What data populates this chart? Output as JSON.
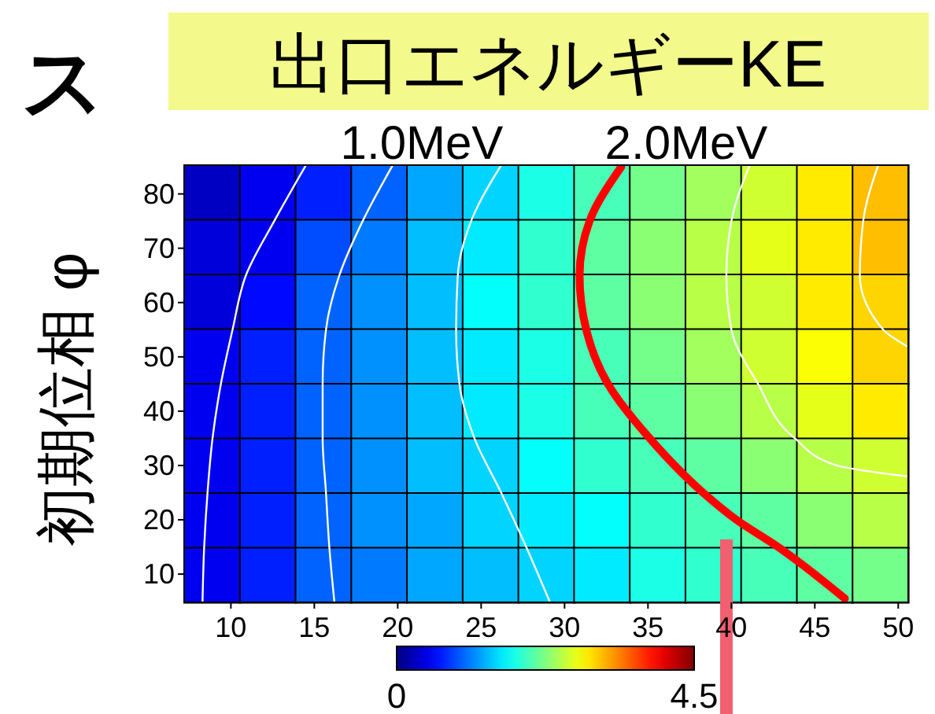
{
  "chart_data": {
    "type": "heatmap",
    "title": "出口エネルギーKE",
    "ylabel": "初期位相 φ",
    "annotations": [
      "ス",
      "1.0MeV",
      "2.0MeV"
    ],
    "ref_lines": [
      {
        "axis": "x",
        "value": 39.7,
        "color": "#f06070"
      }
    ],
    "xlim": [
      7.2,
      50.6
    ],
    "xticks": [
      10,
      15,
      20,
      25,
      30,
      35,
      40,
      45,
      50
    ],
    "ylim": [
      4.8,
      85.3
    ],
    "yticks": [
      10,
      20,
      30,
      40,
      50,
      60,
      70,
      80
    ],
    "clim": [
      0,
      4.5
    ],
    "cticks": [
      0,
      4.5
    ],
    "cells": [
      [
        0.3,
        0.5,
        0.7,
        1.0,
        1.3,
        1.5,
        1.8,
        2.0,
        2.2,
        2.4,
        2.6,
        2.9,
        3.1
      ],
      [
        0.4,
        0.5,
        0.9,
        1.1,
        1.4,
        1.6,
        1.9,
        2.1,
        2.3,
        2.5,
        2.7,
        2.9,
        3.1
      ],
      [
        0.4,
        0.6,
        1.0,
        1.2,
        1.4,
        1.7,
        1.9,
        2.1,
        2.3,
        2.5,
        2.6,
        2.9,
        3.0
      ],
      [
        0.5,
        0.7,
        1.0,
        1.2,
        1.4,
        1.6,
        1.8,
        2.0,
        2.2,
        2.4,
        2.6,
        2.8,
        3.0
      ],
      [
        0.5,
        0.7,
        1.0,
        1.2,
        1.4,
        1.6,
        1.8,
        2.0,
        2.1,
        2.3,
        2.5,
        2.7,
        2.9
      ],
      [
        0.5,
        0.7,
        1.0,
        1.2,
        1.4,
        1.5,
        1.7,
        1.9,
        2.0,
        2.1,
        2.3,
        2.5,
        2.6
      ],
      [
        0.5,
        0.7,
        1.0,
        1.2,
        1.3,
        1.5,
        1.6,
        1.7,
        1.9,
        2.0,
        2.1,
        2.3,
        2.5
      ],
      [
        0.5,
        0.7,
        1.0,
        1.1,
        1.3,
        1.4,
        1.5,
        1.6,
        1.8,
        1.9,
        2.0,
        2.1,
        2.2
      ]
    ],
    "series": [
      {
        "type": "line",
        "color": "#ffffff",
        "x": [
          14.5,
          12.6,
          10.9,
          10.1,
          9.4,
          8.9,
          8.6,
          8.4,
          8.3
        ],
        "values": [
          85.3,
          75,
          65,
          55,
          45,
          35,
          25,
          15,
          5
        ]
      },
      {
        "type": "line",
        "color": "#ffffff",
        "x": [
          19.7,
          17.9,
          16.5,
          15.7,
          15.5,
          15.5,
          15.7,
          15.9,
          16.2
        ],
        "values": [
          85.3,
          75,
          65,
          55,
          45,
          35,
          25,
          15,
          5
        ]
      },
      {
        "type": "line",
        "color": "#ffffff",
        "x": [
          26.2,
          24.4,
          23.6,
          23.5,
          23.7,
          24.6,
          26.2,
          27.7,
          29.1
        ],
        "values": [
          85.3,
          75,
          65,
          55,
          45,
          35,
          25,
          15,
          5
        ]
      },
      {
        "type": "line",
        "color": "#ff0000",
        "x": [
          33.4,
          31.5,
          30.9,
          31.3,
          32.6,
          35.1,
          38.3,
          40.3,
          42.8,
          46.8
        ],
        "values": [
          85,
          75,
          65,
          55,
          45,
          35,
          25,
          20,
          15,
          5.5
        ]
      },
      {
        "type": "line",
        "color": "#ffffff",
        "x": [
          41.1,
          40.0,
          39.7,
          40.0,
          41.6,
          43.8,
          46.3,
          50.5
        ],
        "values": [
          85.3,
          75,
          65,
          55,
          45,
          35,
          30,
          28
        ]
      },
      {
        "type": "line",
        "color": "#ffffff",
        "x": [
          48.8,
          47.9,
          47.7,
          49.1,
          50.5
        ],
        "values": [
          85.3,
          75,
          65,
          55,
          52
        ]
      }
    ]
  }
}
